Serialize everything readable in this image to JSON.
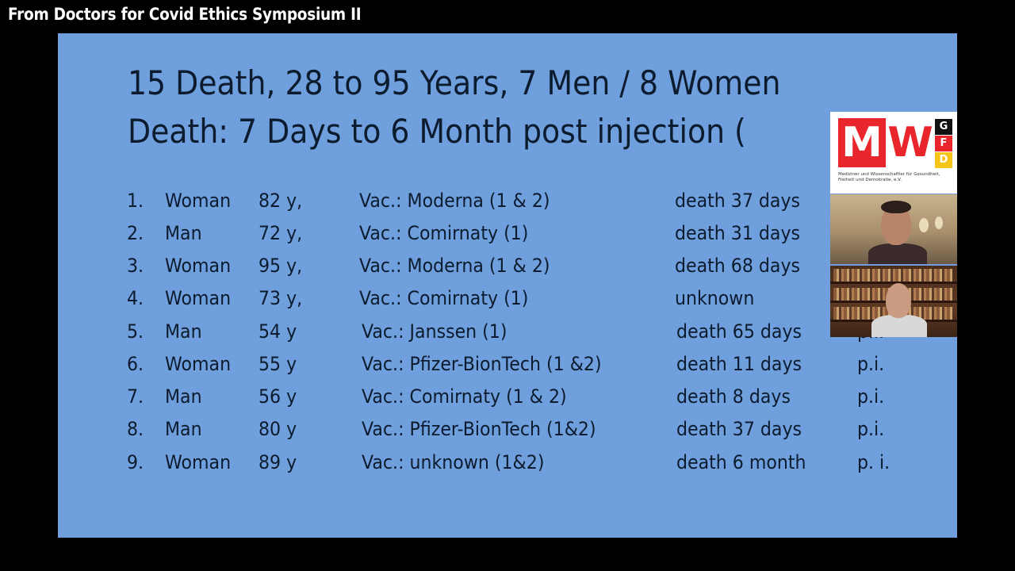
{
  "video_title": "From Doctors for Covid Ethics Symposium II",
  "slide": {
    "headline_1": "15 Death, 28 to 95 Years, 7 Men / 8 Women",
    "headline_2": "Death: 7 Days to 6 Month  post injection (",
    "rows": [
      {
        "num": "1.",
        "sex": "Woman",
        "age": "82 y,",
        "vaccine": "Vac.: Moderna   (1 & 2)",
        "death": "death 37 days",
        "pi": ""
      },
      {
        "num": "2.",
        "sex": "Man",
        "age": "72 y,",
        "vaccine": "Vac.: Comirnaty  (1)",
        "death": "death 31 days",
        "pi": ""
      },
      {
        "num": "3.",
        "sex": "Woman",
        "age": "95 y,",
        "vaccine": "Vac.: Moderna  (1 & 2)",
        "death": "death 68 days",
        "pi": ""
      },
      {
        "num": "4.",
        "sex": "Woman",
        "age": "73 y,",
        "vaccine": "Vac.: Comirnaty (1)",
        "death": "unknown",
        "pi": ""
      },
      {
        "num": "5.",
        "sex": "Man",
        "age": "54 y",
        "vaccine": "Vac.: Janssen (1)",
        "death": "death 65 days",
        "pi": "p.i."
      },
      {
        "num": "6.",
        "sex": "Woman",
        "age": "55 y",
        "vaccine": "Vac.: Pfizer-BionTech (1 &2)",
        "death": "death 11 days",
        "pi": "p.i."
      },
      {
        "num": "7.",
        "sex": "Man",
        "age": "56 y",
        "vaccine": "Vac.: Comirnaty (1 & 2)",
        "death": "death   8  days",
        "pi": "p.i."
      },
      {
        "num": "8.",
        "sex": "Man",
        "age": "80 y",
        "vaccine": "Vac.: Pfizer-BionTech (1&2)",
        "death": "death  37 days",
        "pi": "p.i."
      },
      {
        "num": "9.",
        "sex": "Woman",
        "age": "89 y",
        "vaccine": "Vac.: unknown (1&2)",
        "death": "death   6 month",
        "pi": "p. i."
      }
    ]
  },
  "logo": {
    "letter_m": "M",
    "letter_w": "W",
    "flag_letters": [
      "G",
      "F",
      "D"
    ],
    "subtitle": "Mediziner und Wissenschaftler für Gesundheit, Freiheit und Demokratie, e.V."
  },
  "colors": {
    "slide_background": "#6f9fdc",
    "slide_text": "#0c1c2e",
    "logo_red": "#e8262b"
  }
}
